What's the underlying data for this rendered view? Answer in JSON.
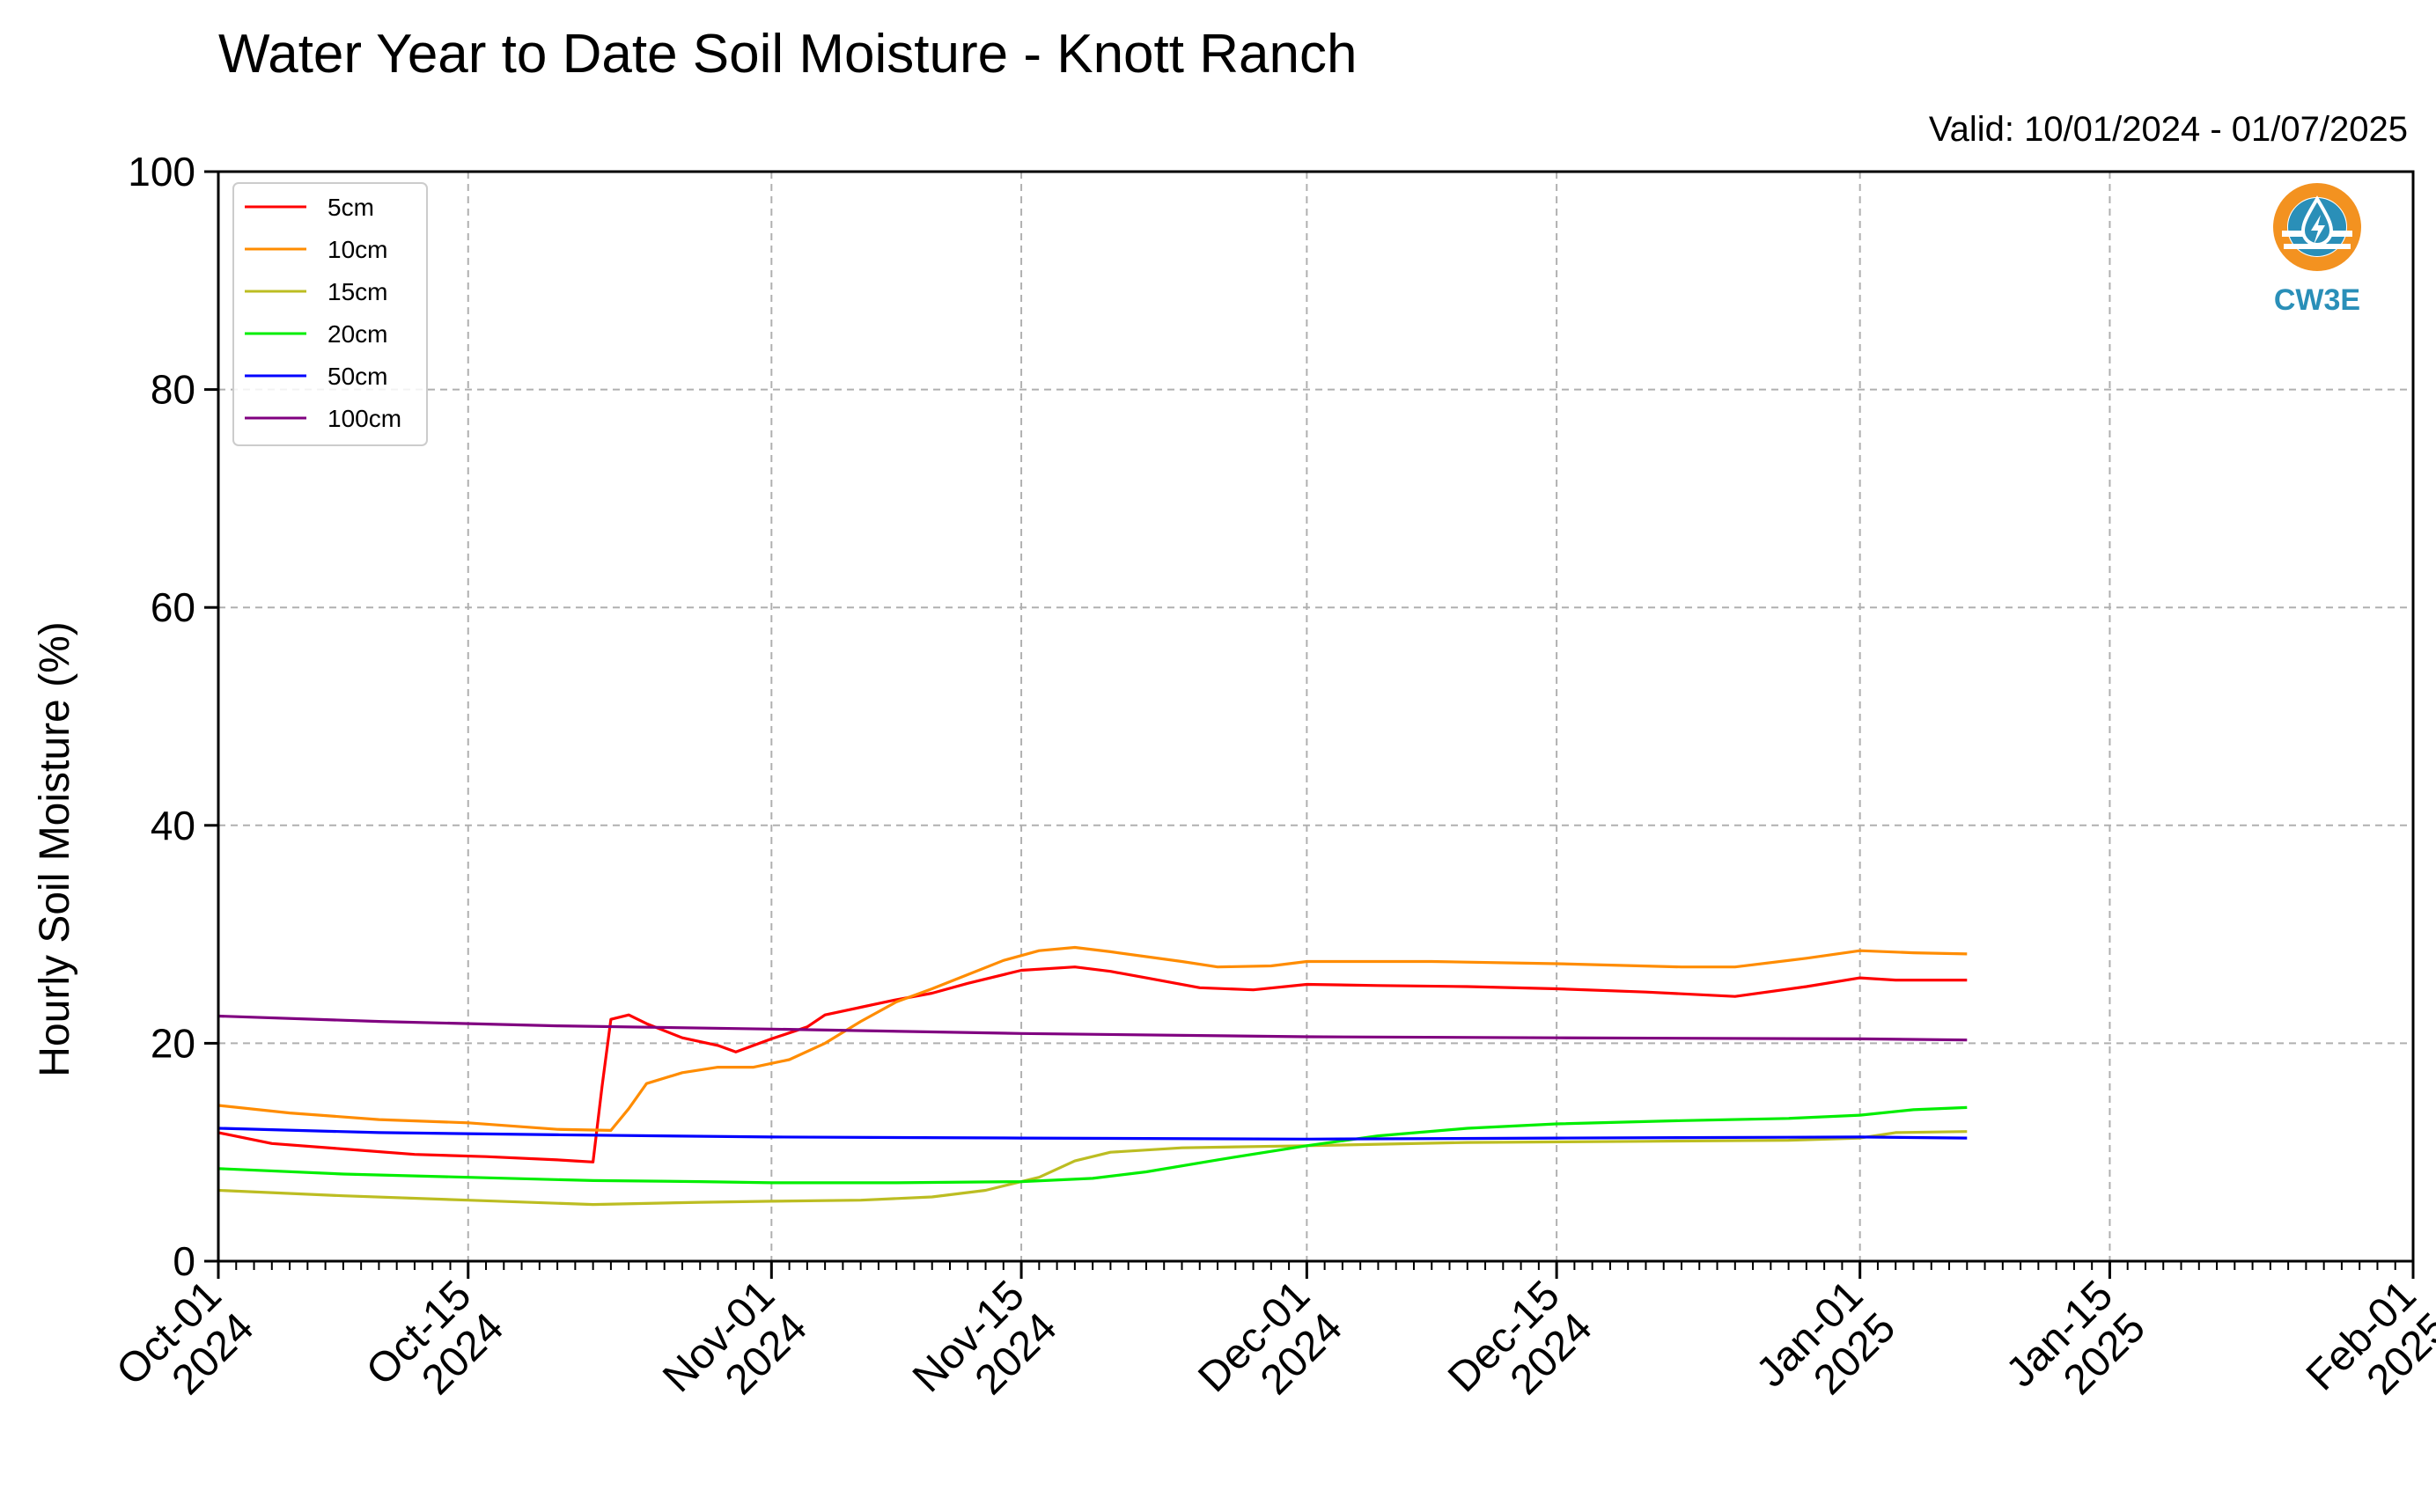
{
  "logo": {
    "text": "CW3E",
    "color": "#2a8fb8",
    "ring_color": "#f39220"
  },
  "chart_data": {
    "type": "line",
    "title": "Water Year to Date Soil Moisture - Knott Ranch",
    "subtitle": "Valid: 10/01/2024 - 01/07/2025",
    "ylabel": "Hourly Soil Moisture (%)",
    "xlabel": "",
    "x_type": "date",
    "xlim": [
      "2024-10-01",
      "2025-02-01"
    ],
    "ylim": [
      0,
      100
    ],
    "grid": true,
    "legend_position": "top-left",
    "x_ticks": [
      {
        "date": "2024-10-01",
        "line1": "Oct-01",
        "line2": "2024"
      },
      {
        "date": "2024-10-15",
        "line1": "Oct-15",
        "line2": "2024"
      },
      {
        "date": "2024-11-01",
        "line1": "Nov-01",
        "line2": "2024"
      },
      {
        "date": "2024-11-15",
        "line1": "Nov-15",
        "line2": "2024"
      },
      {
        "date": "2024-12-01",
        "line1": "Dec-01",
        "line2": "2024"
      },
      {
        "date": "2024-12-15",
        "line1": "Dec-15",
        "line2": "2024"
      },
      {
        "date": "2025-01-01",
        "line1": "Jan-01",
        "line2": "2025"
      },
      {
        "date": "2025-01-15",
        "line1": "Jan-15",
        "line2": "2025"
      },
      {
        "date": "2025-02-01",
        "line1": "Feb-01",
        "line2": "2025"
      }
    ],
    "y_ticks": [
      "0",
      "20",
      "40",
      "60",
      "80",
      "100"
    ],
    "series": [
      {
        "name": "5cm",
        "color": "#ff0000",
        "points": [
          [
            "2024-10-01",
            11.8
          ],
          [
            "2024-10-04",
            10.8
          ],
          [
            "2024-10-08",
            10.3
          ],
          [
            "2024-10-12",
            9.8
          ],
          [
            "2024-10-16",
            9.6
          ],
          [
            "2024-10-20",
            9.3
          ],
          [
            "2024-10-21",
            9.2
          ],
          [
            "2024-10-22",
            9.1
          ],
          [
            "2024-10-22T12:00",
            16.0
          ],
          [
            "2024-10-23",
            22.2
          ],
          [
            "2024-10-24",
            22.6
          ],
          [
            "2024-10-25",
            21.8
          ],
          [
            "2024-10-27",
            20.5
          ],
          [
            "2024-10-29",
            19.8
          ],
          [
            "2024-10-30",
            19.2
          ],
          [
            "2024-11-01",
            20.4
          ],
          [
            "2024-11-03",
            21.5
          ],
          [
            "2024-11-04",
            22.6
          ],
          [
            "2024-11-06",
            23.3
          ],
          [
            "2024-11-08",
            24.0
          ],
          [
            "2024-11-10",
            24.6
          ],
          [
            "2024-11-12",
            25.5
          ],
          [
            "2024-11-15",
            26.7
          ],
          [
            "2024-11-18",
            27.0
          ],
          [
            "2024-11-20",
            26.6
          ],
          [
            "2024-11-22",
            26.0
          ],
          [
            "2024-11-25",
            25.1
          ],
          [
            "2024-11-28",
            24.9
          ],
          [
            "2024-12-01",
            25.4
          ],
          [
            "2024-12-05",
            25.3
          ],
          [
            "2024-12-10",
            25.2
          ],
          [
            "2024-12-15",
            25.0
          ],
          [
            "2024-12-20",
            24.7
          ],
          [
            "2024-12-25",
            24.3
          ],
          [
            "2024-12-29",
            25.2
          ],
          [
            "2025-01-01",
            26.0
          ],
          [
            "2025-01-03",
            25.8
          ],
          [
            "2025-01-07",
            25.8
          ]
        ]
      },
      {
        "name": "10cm",
        "color": "#ff8c00",
        "points": [
          [
            "2024-10-01",
            14.3
          ],
          [
            "2024-10-05",
            13.6
          ],
          [
            "2024-10-10",
            13.0
          ],
          [
            "2024-10-15",
            12.7
          ],
          [
            "2024-10-20",
            12.1
          ],
          [
            "2024-10-23",
            12.0
          ],
          [
            "2024-10-24",
            14.0
          ],
          [
            "2024-10-25",
            16.3
          ],
          [
            "2024-10-27",
            17.3
          ],
          [
            "2024-10-29",
            17.8
          ],
          [
            "2024-10-31",
            17.8
          ],
          [
            "2024-11-02",
            18.5
          ],
          [
            "2024-11-04",
            20.0
          ],
          [
            "2024-11-06",
            22.0
          ],
          [
            "2024-11-08",
            23.8
          ],
          [
            "2024-11-10",
            25.0
          ],
          [
            "2024-11-12",
            26.3
          ],
          [
            "2024-11-14",
            27.6
          ],
          [
            "2024-11-16",
            28.5
          ],
          [
            "2024-11-18",
            28.8
          ],
          [
            "2024-11-20",
            28.4
          ],
          [
            "2024-11-24",
            27.5
          ],
          [
            "2024-11-26",
            27.0
          ],
          [
            "2024-11-29",
            27.1
          ],
          [
            "2024-12-01",
            27.5
          ],
          [
            "2024-12-08",
            27.5
          ],
          [
            "2024-12-15",
            27.3
          ],
          [
            "2024-12-22",
            27.0
          ],
          [
            "2024-12-25",
            27.0
          ],
          [
            "2024-12-29",
            27.8
          ],
          [
            "2025-01-01",
            28.5
          ],
          [
            "2025-01-04",
            28.3
          ],
          [
            "2025-01-07",
            28.2
          ]
        ]
      },
      {
        "name": "15cm",
        "color": "#bcbd22",
        "points": [
          [
            "2024-10-01",
            6.5
          ],
          [
            "2024-10-08",
            6.0
          ],
          [
            "2024-10-15",
            5.6
          ],
          [
            "2024-10-22",
            5.2
          ],
          [
            "2024-10-28",
            5.4
          ],
          [
            "2024-11-01",
            5.5
          ],
          [
            "2024-11-06",
            5.6
          ],
          [
            "2024-11-10",
            5.9
          ],
          [
            "2024-11-13",
            6.5
          ],
          [
            "2024-11-16",
            7.7
          ],
          [
            "2024-11-18",
            9.2
          ],
          [
            "2024-11-20",
            10.0
          ],
          [
            "2024-11-24",
            10.4
          ],
          [
            "2024-12-01",
            10.6
          ],
          [
            "2024-12-10",
            10.9
          ],
          [
            "2024-12-20",
            11.0
          ],
          [
            "2024-12-28",
            11.1
          ],
          [
            "2025-01-01",
            11.3
          ],
          [
            "2025-01-03",
            11.8
          ],
          [
            "2025-01-07",
            11.9
          ]
        ]
      },
      {
        "name": "20cm",
        "color": "#00ee00",
        "points": [
          [
            "2024-10-01",
            8.5
          ],
          [
            "2024-10-08",
            8.0
          ],
          [
            "2024-10-15",
            7.7
          ],
          [
            "2024-10-22",
            7.4
          ],
          [
            "2024-10-28",
            7.3
          ],
          [
            "2024-11-01",
            7.2
          ],
          [
            "2024-11-08",
            7.2
          ],
          [
            "2024-11-15",
            7.3
          ],
          [
            "2024-11-19",
            7.6
          ],
          [
            "2024-11-22",
            8.2
          ],
          [
            "2024-11-26",
            9.3
          ],
          [
            "2024-12-01",
            10.6
          ],
          [
            "2024-12-05",
            11.5
          ],
          [
            "2024-12-10",
            12.2
          ],
          [
            "2024-12-15",
            12.6
          ],
          [
            "2024-12-22",
            12.9
          ],
          [
            "2024-12-28",
            13.1
          ],
          [
            "2025-01-01",
            13.4
          ],
          [
            "2025-01-04",
            13.9
          ],
          [
            "2025-01-07",
            14.1
          ]
        ]
      },
      {
        "name": "50cm",
        "color": "#0000ff",
        "points": [
          [
            "2024-10-01",
            12.2
          ],
          [
            "2024-10-10",
            11.8
          ],
          [
            "2024-10-20",
            11.6
          ],
          [
            "2024-11-01",
            11.4
          ],
          [
            "2024-11-15",
            11.3
          ],
          [
            "2024-12-01",
            11.2
          ],
          [
            "2024-12-15",
            11.3
          ],
          [
            "2025-01-01",
            11.4
          ],
          [
            "2025-01-07",
            11.3
          ]
        ]
      },
      {
        "name": "100cm",
        "color": "#800080",
        "points": [
          [
            "2024-10-01",
            22.5
          ],
          [
            "2024-10-10",
            22.0
          ],
          [
            "2024-10-20",
            21.6
          ],
          [
            "2024-11-01",
            21.3
          ],
          [
            "2024-11-15",
            20.9
          ],
          [
            "2024-12-01",
            20.6
          ],
          [
            "2024-12-15",
            20.5
          ],
          [
            "2025-01-01",
            20.4
          ],
          [
            "2025-01-07",
            20.3
          ]
        ]
      }
    ]
  }
}
